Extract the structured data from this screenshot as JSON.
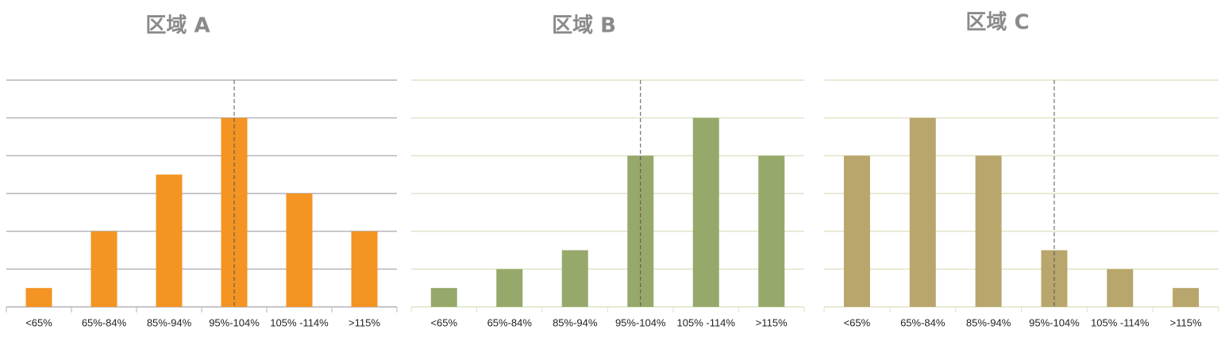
{
  "chart_data": [
    {
      "type": "bar",
      "title": "区域 A",
      "categories": [
        "<65%",
        "65%-84%",
        "85%-94%",
        "95%-104%",
        "105% -114%",
        ">115%"
      ],
      "values": [
        0.5,
        2,
        3.5,
        5,
        3,
        2
      ],
      "color": "#f39423",
      "grid_color": "#b4b4bc",
      "ylim": [
        0,
        6
      ],
      "yticks": [
        0,
        1,
        2,
        3,
        4,
        5,
        6
      ],
      "grid": true,
      "reference_line": "95%-104%"
    },
    {
      "type": "bar",
      "title": "区域 B",
      "categories": [
        "<65%",
        "65%-84%",
        "85%-94%",
        "95%-104%",
        "105% -114%",
        ">115%"
      ],
      "values": [
        0.5,
        1,
        1.5,
        4,
        5,
        4
      ],
      "color": "#97a86b",
      "grid_color": "#dfe4c8",
      "ylim": [
        0,
        6
      ],
      "yticks": [
        0,
        1,
        2,
        3,
        4,
        5,
        6
      ],
      "grid": true,
      "reference_line": "95%-104%"
    },
    {
      "type": "bar",
      "title": "区域 C",
      "categories": [
        "<65%",
        "65%-84%",
        "85%-94%",
        "95%-104%",
        "105% -114%",
        ">115%"
      ],
      "values": [
        4,
        5,
        4,
        1.5,
        1,
        0.5
      ],
      "color": "#b9a66c",
      "grid_color": "#e2e4c8",
      "ylim": [
        0,
        6
      ],
      "yticks": [
        0,
        1,
        2,
        3,
        4,
        5,
        6
      ],
      "grid": true,
      "reference_line": "95%-104%"
    }
  ]
}
